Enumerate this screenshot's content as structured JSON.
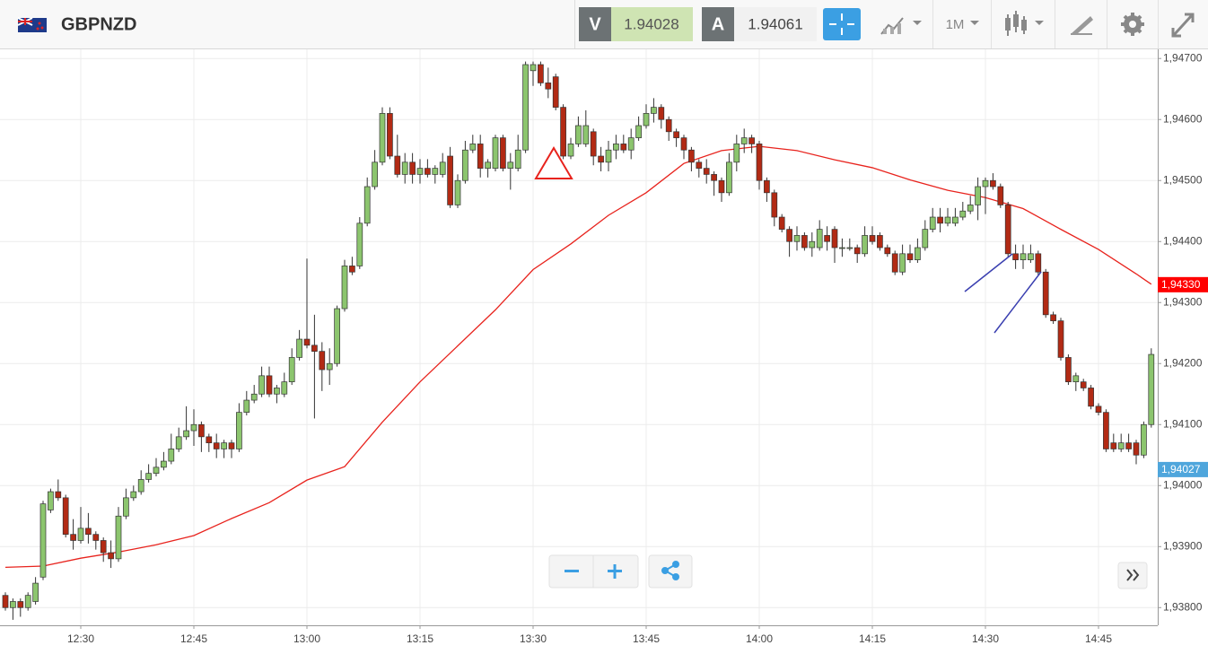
{
  "header": {
    "symbol": "GBPNZD",
    "sell_label": "V",
    "sell_price": "1.94028",
    "buy_label": "A",
    "buy_price": "1.94061",
    "timeframe": "1M"
  },
  "chart_data": {
    "type": "candlestick",
    "up_color": "#8cc56e",
    "down_color": "#b22a14",
    "x": [
      "12:20",
      "12:21",
      "12:22",
      "12:23",
      "12:24",
      "12:25",
      "12:26",
      "12:27",
      "12:28",
      "12:29",
      "12:30",
      "12:31",
      "12:32",
      "12:33",
      "12:34",
      "12:35",
      "12:36",
      "12:37",
      "12:38",
      "12:39",
      "12:40",
      "12:41",
      "12:42",
      "12:43",
      "12:44",
      "12:45",
      "12:46",
      "12:47",
      "12:48",
      "12:49",
      "12:50",
      "12:51",
      "12:52",
      "12:53",
      "12:54",
      "12:55",
      "12:56",
      "12:57",
      "12:58",
      "12:59",
      "13:00",
      "13:01",
      "13:02",
      "13:03",
      "13:04",
      "13:05",
      "13:06",
      "13:07",
      "13:08",
      "13:09",
      "13:10",
      "13:11",
      "13:12",
      "13:13",
      "13:14",
      "13:15",
      "13:16",
      "13:17",
      "13:18",
      "13:19",
      "13:20",
      "13:21",
      "13:22",
      "13:23",
      "13:24",
      "13:25",
      "13:26",
      "13:27",
      "13:28",
      "13:29",
      "13:30",
      "13:31",
      "13:32",
      "13:33",
      "13:34",
      "13:35",
      "13:36",
      "13:37",
      "13:38",
      "13:39",
      "13:40",
      "13:41",
      "13:42",
      "13:43",
      "13:44",
      "13:45",
      "13:46",
      "13:47",
      "13:48",
      "13:49",
      "13:50",
      "13:51",
      "13:52",
      "13:53",
      "13:54",
      "13:55",
      "13:56",
      "13:57",
      "13:58",
      "13:59",
      "14:00",
      "14:01",
      "14:02",
      "14:03",
      "14:04",
      "14:05",
      "14:06",
      "14:07",
      "14:08",
      "14:09",
      "14:10",
      "14:11",
      "14:12",
      "14:13",
      "14:14",
      "14:15",
      "14:16",
      "14:17",
      "14:18",
      "14:19",
      "14:20",
      "14:21",
      "14:22",
      "14:23",
      "14:24",
      "14:25",
      "14:26",
      "14:27",
      "14:28",
      "14:29",
      "14:30",
      "14:31",
      "14:32",
      "14:33",
      "14:34",
      "14:35",
      "14:36",
      "14:37",
      "14:38",
      "14:39",
      "14:40",
      "14:41",
      "14:42",
      "14:43",
      "14:44",
      "14:45",
      "14:46",
      "14:47",
      "14:48",
      "14:49",
      "14:50",
      "14:51",
      "14:52"
    ],
    "ohlc": [
      [
        1.9382,
        1.93825,
        1.93795,
        1.938
      ],
      [
        1.938,
        1.93815,
        1.9378,
        1.9381
      ],
      [
        1.9381,
        1.93815,
        1.93785,
        1.938
      ],
      [
        1.938,
        1.93825,
        1.93795,
        1.9382
      ],
      [
        1.9381,
        1.9385,
        1.93805,
        1.9384
      ],
      [
        1.9385,
        1.93975,
        1.93845,
        1.9397
      ],
      [
        1.9396,
        1.93995,
        1.93955,
        1.9399
      ],
      [
        1.9399,
        1.9401,
        1.93975,
        1.9398
      ],
      [
        1.9398,
        1.93985,
        1.93915,
        1.9392
      ],
      [
        1.9392,
        1.93945,
        1.93895,
        1.9391
      ],
      [
        1.9391,
        1.93965,
        1.93905,
        1.9393
      ],
      [
        1.9393,
        1.93955,
        1.93905,
        1.9392
      ],
      [
        1.9392,
        1.93925,
        1.93895,
        1.9391
      ],
      [
        1.9391,
        1.93915,
        1.93875,
        1.9389
      ],
      [
        1.9389,
        1.9391,
        1.93865,
        1.9388
      ],
      [
        1.9388,
        1.93965,
        1.93875,
        1.9395
      ],
      [
        1.9395,
        1.93995,
        1.93945,
        1.9398
      ],
      [
        1.9398,
        1.94,
        1.93975,
        1.9399
      ],
      [
        1.9399,
        1.94025,
        1.93985,
        1.9401
      ],
      [
        1.9401,
        1.94035,
        1.94005,
        1.9402
      ],
      [
        1.9402,
        1.94045,
        1.94015,
        1.9403
      ],
      [
        1.9403,
        1.94055,
        1.94025,
        1.9404
      ],
      [
        1.9404,
        1.94085,
        1.94035,
        1.9406
      ],
      [
        1.9406,
        1.94095,
        1.94055,
        1.9408
      ],
      [
        1.9408,
        1.9413,
        1.94075,
        1.9409
      ],
      [
        1.9409,
        1.94125,
        1.94065,
        1.941
      ],
      [
        1.941,
        1.94105,
        1.94055,
        1.9408
      ],
      [
        1.9408,
        1.94085,
        1.94055,
        1.9407
      ],
      [
        1.9407,
        1.94085,
        1.94045,
        1.9406
      ],
      [
        1.9406,
        1.94075,
        1.94045,
        1.9407
      ],
      [
        1.9407,
        1.94075,
        1.94045,
        1.9406
      ],
      [
        1.9406,
        1.94135,
        1.94055,
        1.9412
      ],
      [
        1.9412,
        1.94155,
        1.94115,
        1.9414
      ],
      [
        1.9414,
        1.94165,
        1.94135,
        1.9415
      ],
      [
        1.9415,
        1.94195,
        1.94145,
        1.9418
      ],
      [
        1.9418,
        1.94195,
        1.94145,
        1.9415
      ],
      [
        1.9415,
        1.94165,
        1.94135,
        1.9416
      ],
      [
        1.9415,
        1.94185,
        1.94145,
        1.9417
      ],
      [
        1.9417,
        1.94225,
        1.94165,
        1.9421
      ],
      [
        1.9421,
        1.94255,
        1.94205,
        1.9424
      ],
      [
        1.9424,
        1.94372,
        1.94225,
        1.9423
      ],
      [
        1.9423,
        1.9428,
        1.9411,
        1.9422
      ],
      [
        1.9422,
        1.94235,
        1.94155,
        1.9419
      ],
      [
        1.9419,
        1.94225,
        1.94165,
        1.942
      ],
      [
        1.942,
        1.94295,
        1.94195,
        1.9429
      ],
      [
        1.9429,
        1.9437,
        1.94285,
        1.9436
      ],
      [
        1.9436,
        1.94375,
        1.94345,
        1.9435
      ],
      [
        1.9436,
        1.9444,
        1.94355,
        1.9443
      ],
      [
        1.9443,
        1.94505,
        1.94425,
        1.9449
      ],
      [
        1.9449,
        1.9455,
        1.94485,
        1.9453
      ],
      [
        1.9453,
        1.9462,
        1.94525,
        1.9461
      ],
      [
        1.9461,
        1.9462,
        1.94535,
        1.9454
      ],
      [
        1.9454,
        1.94575,
        1.94505,
        1.9451
      ],
      [
        1.9451,
        1.94545,
        1.94495,
        1.9453
      ],
      [
        1.9453,
        1.94545,
        1.94495,
        1.9451
      ],
      [
        1.9451,
        1.94535,
        1.94495,
        1.9452
      ],
      [
        1.9452,
        1.94535,
        1.94505,
        1.9451
      ],
      [
        1.9451,
        1.94525,
        1.94495,
        1.9452
      ],
      [
        1.9451,
        1.94545,
        1.94505,
        1.9453
      ],
      [
        1.9454,
        1.94555,
        1.94455,
        1.9446
      ],
      [
        1.9446,
        1.9451,
        1.94455,
        1.945
      ],
      [
        1.945,
        1.94565,
        1.94495,
        1.9455
      ],
      [
        1.9455,
        1.94575,
        1.94545,
        1.9456
      ],
      [
        1.9456,
        1.94575,
        1.94505,
        1.9452
      ],
      [
        1.9452,
        1.94535,
        1.94505,
        1.9453
      ],
      [
        1.9452,
        1.94575,
        1.94515,
        1.9457
      ],
      [
        1.9457,
        1.94575,
        1.94515,
        1.9452
      ],
      [
        1.9452,
        1.94545,
        1.94485,
        1.9453
      ],
      [
        1.9452,
        1.94575,
        1.94515,
        1.9455
      ],
      [
        1.9455,
        1.94695,
        1.94545,
        1.9469
      ],
      [
        1.9468,
        1.94695,
        1.94655,
        1.9469
      ],
      [
        1.9469,
        1.94695,
        1.94655,
        1.9466
      ],
      [
        1.9466,
        1.94685,
        1.94635,
        1.9465
      ],
      [
        1.9467,
        1.94675,
        1.94615,
        1.9462
      ],
      [
        1.9462,
        1.94625,
        1.94535,
        1.9454
      ],
      [
        1.9454,
        1.9457,
        1.94535,
        1.9456
      ],
      [
        1.9456,
        1.94605,
        1.94555,
        1.9459
      ],
      [
        1.9456,
        1.94615,
        1.94555,
        1.9459
      ],
      [
        1.9458,
        1.94585,
        1.94525,
        1.9454
      ],
      [
        1.9454,
        1.94555,
        1.94515,
        1.9453
      ],
      [
        1.9453,
        1.94565,
        1.94515,
        1.9455
      ],
      [
        1.9455,
        1.94575,
        1.94535,
        1.9456
      ],
      [
        1.9456,
        1.94575,
        1.94545,
        1.9455
      ],
      [
        1.9455,
        1.94585,
        1.94535,
        1.9457
      ],
      [
        1.9457,
        1.94605,
        1.94565,
        1.9459
      ],
      [
        1.9459,
        1.94625,
        1.94585,
        1.9461
      ],
      [
        1.9461,
        1.94635,
        1.94595,
        1.9462
      ],
      [
        1.9462,
        1.94625,
        1.94585,
        1.946
      ],
      [
        1.946,
        1.94605,
        1.94565,
        1.9458
      ],
      [
        1.9458,
        1.94585,
        1.94555,
        1.9457
      ],
      [
        1.9457,
        1.94575,
        1.94535,
        1.9455
      ],
      [
        1.9455,
        1.94555,
        1.94515,
        1.9453
      ],
      [
        1.9453,
        1.94535,
        1.94505,
        1.9452
      ],
      [
        1.9452,
        1.94535,
        1.94495,
        1.9451
      ],
      [
        1.9451,
        1.94515,
        1.94475,
        1.945
      ],
      [
        1.945,
        1.94505,
        1.94465,
        1.9448
      ],
      [
        1.9448,
        1.94545,
        1.94475,
        1.9453
      ],
      [
        1.9453,
        1.94575,
        1.94515,
        1.9456
      ],
      [
        1.9456,
        1.94585,
        1.94545,
        1.9457
      ],
      [
        1.9457,
        1.94575,
        1.94545,
        1.9456
      ],
      [
        1.9456,
        1.94565,
        1.94485,
        1.945
      ],
      [
        1.945,
        1.94505,
        1.94465,
        1.9448
      ],
      [
        1.9448,
        1.94485,
        1.94425,
        1.9444
      ],
      [
        1.9444,
        1.94445,
        1.94415,
        1.9442
      ],
      [
        1.9442,
        1.94425,
        1.94375,
        1.944
      ],
      [
        1.944,
        1.94425,
        1.94385,
        1.9441
      ],
      [
        1.9441,
        1.94415,
        1.94385,
        1.9439
      ],
      [
        1.9439,
        1.94415,
        1.94375,
        1.944
      ],
      [
        1.9439,
        1.94435,
        1.94385,
        1.9442
      ],
      [
        1.9441,
        1.94425,
        1.94385,
        1.944
      ],
      [
        1.9442,
        1.94425,
        1.94365,
        1.9439
      ],
      [
        1.9439,
        1.94405,
        1.94375,
        1.9439
      ],
      [
        1.9439,
        1.94405,
        1.94385,
        1.9439
      ],
      [
        1.9439,
        1.94395,
        1.94365,
        1.9438
      ],
      [
        1.9438,
        1.94425,
        1.94375,
        1.9441
      ],
      [
        1.9441,
        1.94425,
        1.94395,
        1.944
      ],
      [
        1.9441,
        1.94415,
        1.94385,
        1.9439
      ],
      [
        1.9439,
        1.94395,
        1.94375,
        1.9438
      ],
      [
        1.9438,
        1.94385,
        1.94345,
        1.9435
      ],
      [
        1.9435,
        1.94395,
        1.94345,
        1.9438
      ],
      [
        1.9438,
        1.94395,
        1.94365,
        1.9437
      ],
      [
        1.9437,
        1.94405,
        1.94365,
        1.9439
      ],
      [
        1.9439,
        1.94435,
        1.94385,
        1.9442
      ],
      [
        1.9442,
        1.94455,
        1.94415,
        1.9444
      ],
      [
        1.9444,
        1.94455,
        1.94415,
        1.9443
      ],
      [
        1.9443,
        1.94455,
        1.94425,
        1.9444
      ],
      [
        1.9443,
        1.94455,
        1.94425,
        1.9444
      ],
      [
        1.9444,
        1.94465,
        1.94435,
        1.9445
      ],
      [
        1.9445,
        1.94475,
        1.94445,
        1.9446
      ],
      [
        1.9446,
        1.94505,
        1.94435,
        1.9449
      ],
      [
        1.9449,
        1.94505,
        1.94445,
        1.945
      ],
      [
        1.945,
        1.94512,
        1.94485,
        1.9449
      ],
      [
        1.9449,
        1.94495,
        1.94455,
        1.9446
      ],
      [
        1.9446,
        1.94465,
        1.94375,
        1.9438
      ],
      [
        1.9438,
        1.94395,
        1.94355,
        1.9437
      ],
      [
        1.9437,
        1.94395,
        1.94355,
        1.9438
      ],
      [
        1.9437,
        1.94395,
        1.94365,
        1.9438
      ],
      [
        1.9438,
        1.94385,
        1.94345,
        1.9435
      ],
      [
        1.9435,
        1.94355,
        1.94275,
        1.9428
      ],
      [
        1.9428,
        1.94285,
        1.94265,
        1.9427
      ],
      [
        1.9427,
        1.94275,
        1.94205,
        1.9421
      ],
      [
        1.9421,
        1.94215,
        1.94165,
        1.9417
      ],
      [
        1.9417,
        1.94185,
        1.94155,
        1.9418
      ],
      [
        1.9417,
        1.94175,
        1.94155,
        1.9416
      ],
      [
        1.9416,
        1.94165,
        1.94125,
        1.9413
      ],
      [
        1.9413,
        1.94135,
        1.94115,
        1.9412
      ],
      [
        1.9412,
        1.94125,
        1.94055,
        1.9406
      ],
      [
        1.9407,
        1.94085,
        1.94055,
        1.9406
      ],
      [
        1.9406,
        1.94085,
        1.94055,
        1.9407
      ],
      [
        1.9407,
        1.94085,
        1.94055,
        1.9406
      ],
      [
        1.9407,
        1.94075,
        1.94035,
        1.9405
      ],
      [
        1.9405,
        1.94105,
        1.94045,
        1.941
      ],
      [
        1.941,
        1.94225,
        1.94095,
        1.94215
      ]
    ],
    "line": {
      "color": "#e8231d",
      "x": [
        "12:20",
        "12:25",
        "12:30",
        "12:35",
        "12:40",
        "12:45",
        "12:50",
        "12:55",
        "13:00",
        "13:05",
        "13:10",
        "13:15",
        "13:20",
        "13:25",
        "13:30",
        "13:35",
        "13:40",
        "13:45",
        "13:50",
        "13:55",
        "14:00",
        "14:05",
        "14:10",
        "14:15",
        "14:20",
        "14:25",
        "14:30",
        "14:35",
        "14:40",
        "14:45",
        "14:50",
        "14:52"
      ],
      "values": [
        1.93866,
        1.93868,
        1.93881,
        1.93891,
        1.93903,
        1.93918,
        1.93946,
        1.93972,
        1.94009,
        1.94031,
        1.94104,
        1.9417,
        1.94229,
        1.94288,
        1.94354,
        1.94396,
        1.94443,
        1.9448,
        1.94528,
        1.94549,
        1.94556,
        1.94549,
        1.94534,
        1.94521,
        1.94501,
        1.94484,
        1.94472,
        1.94454,
        1.9442,
        1.94387,
        1.94347,
        1.9433
      ]
    },
    "ylim": [
      1.93771,
      1.94715
    ],
    "yticks": [
      {
        "value": 1.938,
        "label": "1,93800"
      },
      {
        "value": 1.939,
        "label": "1,93900"
      },
      {
        "value": 1.94,
        "label": "1,94000"
      },
      {
        "value": 1.941,
        "label": "1,94100"
      },
      {
        "value": 1.942,
        "label": "1,94200"
      },
      {
        "value": 1.943,
        "label": "1,94300"
      },
      {
        "value": 1.944,
        "label": "1,94400"
      },
      {
        "value": 1.945,
        "label": "1,94500"
      },
      {
        "value": 1.946,
        "label": "1,94600"
      },
      {
        "value": 1.947,
        "label": "1,94700"
      }
    ],
    "xticks": [
      "12:30",
      "12:45",
      "13:00",
      "13:15",
      "13:30",
      "13:45",
      "14:00",
      "14:15",
      "14:30",
      "14:45"
    ],
    "price_labels": [
      {
        "value": 1.9433,
        "label": "1,94330",
        "color": "#ff0000"
      },
      {
        "value": 1.94027,
        "label": "1,94027",
        "color": "#4fa6dc"
      }
    ],
    "grid": true
  }
}
